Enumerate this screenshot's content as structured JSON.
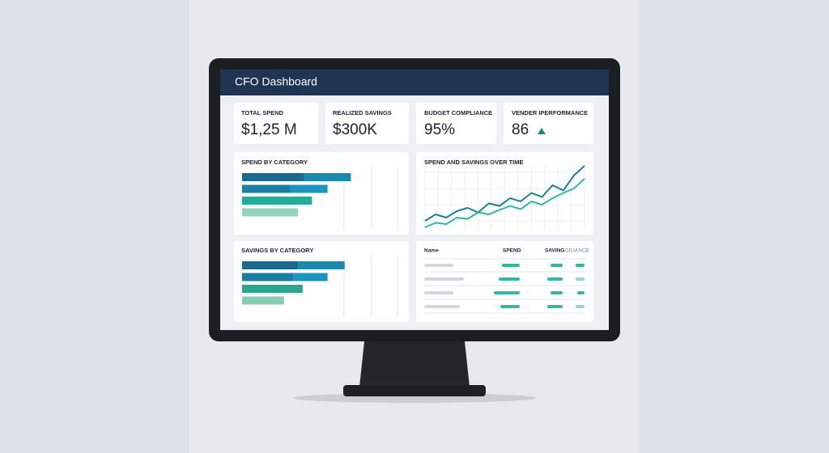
{
  "header": {
    "title": "CFO Dashboard"
  },
  "kpis": [
    {
      "label": "TOTAL SPEND",
      "value": "$1,25 M"
    },
    {
      "label": "REALIZED SAVINGS",
      "value": "$300K"
    },
    {
      "label": "BUDGET COMPLIANCE",
      "value": "95%"
    },
    {
      "label": "VENDER IPERFORMANCE",
      "value": "86"
    }
  ],
  "spend_by_category": {
    "title": "SPEND BY CATEGORY",
    "xlim": [
      0,
      100
    ],
    "bars": [
      {
        "values": [
          40,
          30
        ],
        "colors": [
          "#1a6a8e",
          "#1b88b0"
        ]
      },
      {
        "values": [
          31,
          24
        ],
        "colors": [
          "#1a7ea3",
          "#1c95bd"
        ]
      },
      {
        "values": [
          45
        ],
        "colors": [
          "#1fae9c"
        ]
      },
      {
        "values": [
          36
        ],
        "colors": [
          "#93d2bd"
        ]
      }
    ]
  },
  "savings_by_category": {
    "title": "SAVINGS BY CATEGORY",
    "xlim": [
      0,
      100
    ],
    "bars": [
      {
        "values": [
          36,
          30
        ],
        "colors": [
          "#1a6a8e",
          "#1b88b0"
        ]
      },
      {
        "values": [
          33,
          22
        ],
        "colors": [
          "#1a7ea3",
          "#1c95bd"
        ]
      },
      {
        "values": [
          39
        ],
        "colors": [
          "#2aa68f"
        ]
      },
      {
        "values": [
          27
        ],
        "colors": [
          "#86cdb1"
        ]
      }
    ]
  },
  "chart_data": {
    "type": "line",
    "title": "SPEND AND SAVINGS OVER TIME",
    "ylim": [
      0,
      100
    ],
    "series": [
      {
        "color": "#1a7f99",
        "values": [
          15,
          25,
          20,
          30,
          35,
          28,
          42,
          38,
          50,
          45,
          58,
          52,
          70,
          62,
          85,
          100
        ]
      },
      {
        "color": "#2fb9a0",
        "values": [
          5,
          12,
          10,
          20,
          18,
          28,
          25,
          32,
          38,
          33,
          45,
          40,
          50,
          58,
          65,
          80
        ]
      }
    ]
  },
  "table": {
    "headers": [
      "Name",
      "SPEND",
      "SAVING",
      "CILIANCE"
    ]
  }
}
